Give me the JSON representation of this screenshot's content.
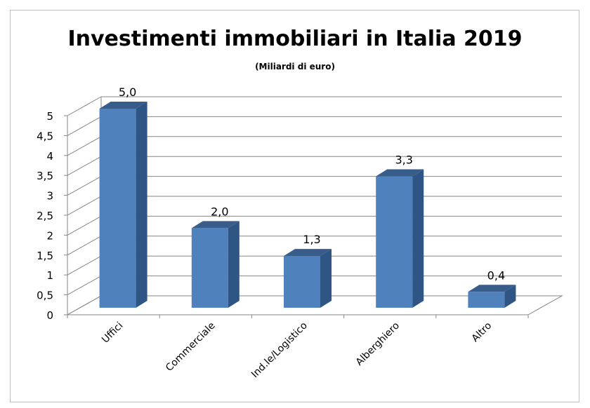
{
  "chart_data": {
    "type": "bar",
    "title": "Investimenti immobiliari in Italia 2019",
    "subtitle": "(Miliardi di euro)",
    "categories": [
      "Uffici",
      "Commerciale",
      "Ind.le/Logistico",
      "Alberghiero",
      "Altro"
    ],
    "values": [
      5.0,
      2.0,
      1.3,
      3.3,
      0.4
    ],
    "data_labels": [
      "5,0",
      "2,0",
      "1,3",
      "3,3",
      "0,4"
    ],
    "y_ticks": [
      "0",
      "0,5",
      "1",
      "1,5",
      "2",
      "2,5",
      "3",
      "3,5",
      "4",
      "4,5",
      "5"
    ],
    "ylim": [
      0,
      5
    ],
    "grid": true,
    "legend": "none",
    "style": "3d-column",
    "colors": {
      "bar_front": "#4f81bd",
      "bar_side": "#2f5584",
      "bar_top": "#385d8a",
      "gridline": "#868686",
      "text": "#000000"
    }
  }
}
